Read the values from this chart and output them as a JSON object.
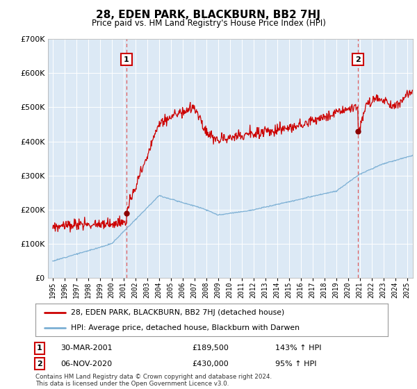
{
  "title": "28, EDEN PARK, BLACKBURN, BB2 7HJ",
  "subtitle": "Price paid vs. HM Land Registry's House Price Index (HPI)",
  "property_label": "28, EDEN PARK, BLACKBURN, BB2 7HJ (detached house)",
  "hpi_label": "HPI: Average price, detached house, Blackburn with Darwen",
  "ann1": {
    "num": "1",
    "date": "30-MAR-2001",
    "price": "£189,500",
    "hpi": "143% ↑ HPI",
    "x_year": 2001.25,
    "price_val": 189500
  },
  "ann2": {
    "num": "2",
    "date": "06-NOV-2020",
    "price": "£430,000",
    "hpi": "95% ↑ HPI",
    "x_year": 2020.85,
    "price_val": 430000
  },
  "footer": "Contains HM Land Registry data © Crown copyright and database right 2024.\nThis data is licensed under the Open Government Licence v3.0.",
  "property_color": "#cc0000",
  "hpi_color": "#7bafd4",
  "dashed_color": "#dd4444",
  "box_color": "#cc0000",
  "bg_color": "#dce9f5",
  "plot_bg": "#dce9f5",
  "grid_color": "#ffffff",
  "ylim": [
    0,
    700000
  ],
  "yticks": [
    0,
    100000,
    200000,
    300000,
    400000,
    500000,
    600000,
    700000
  ],
  "xlim_start": 1994.6,
  "xlim_end": 2025.5
}
